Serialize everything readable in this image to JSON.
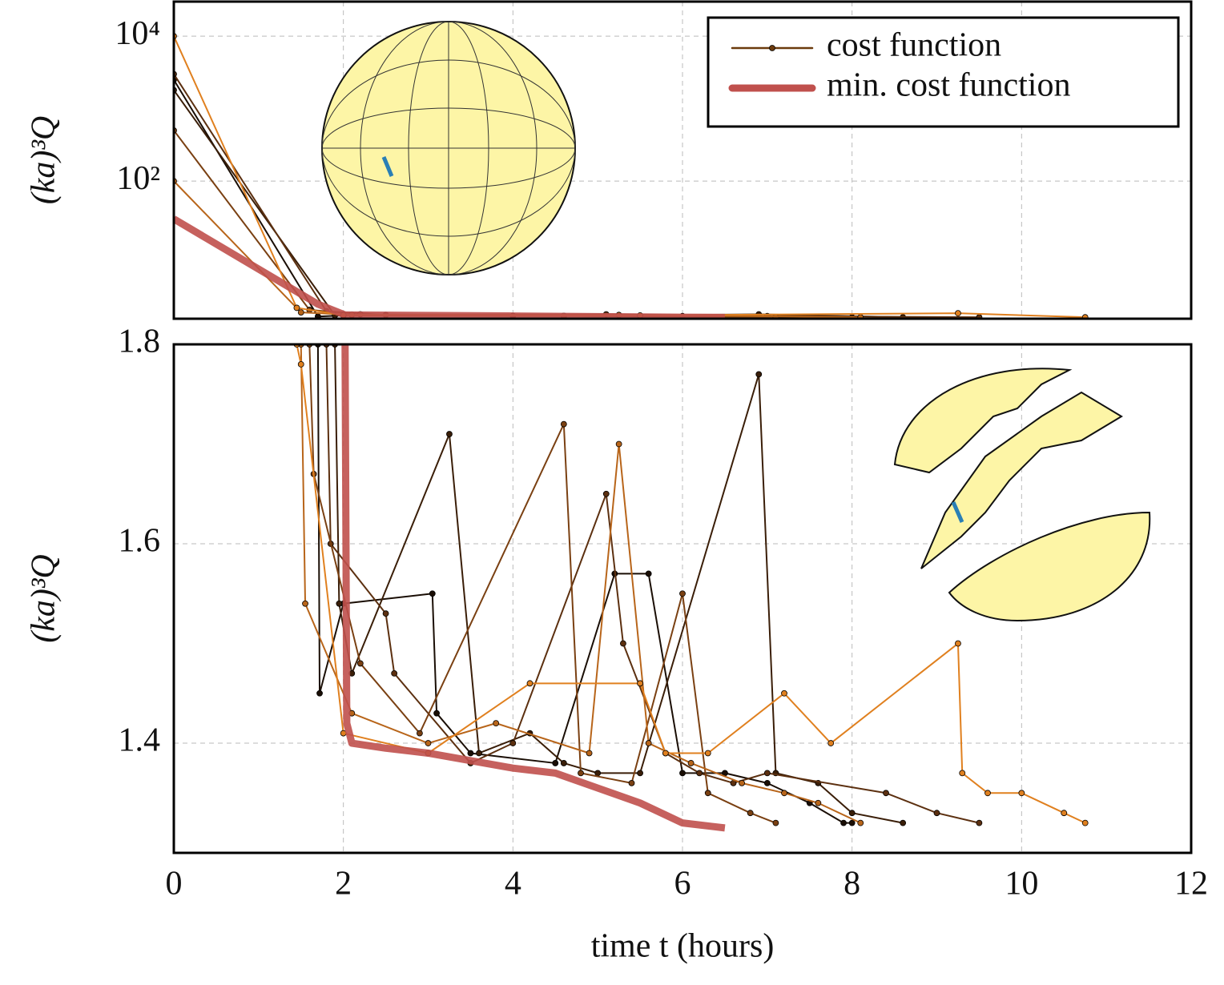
{
  "chart_data": [
    {
      "type": "line",
      "ylabel": "(ka)³Q",
      "yscale": "log",
      "xlim": [
        0,
        12
      ],
      "xticks": [
        0,
        2,
        4,
        6,
        8,
        10,
        12
      ],
      "xtick_labels": false,
      "ylim": [
        1.26,
        30000
      ],
      "yticks": [
        {
          "value": 100,
          "label": "10²"
        },
        {
          "value": 10000,
          "label": "10⁴"
        }
      ],
      "grid": true,
      "legend": {
        "position": "upper right",
        "entries": [
          {
            "label": "cost function",
            "color": "#6b3a0c",
            "style": "markers"
          },
          {
            "label": "min. cost function",
            "color": "#c0504d",
            "style": "thick"
          }
        ]
      },
      "series": [
        {
          "color": "#1a0e05",
          "style": "markers",
          "x": [
            0,
            1.7,
            2,
            4,
            6,
            8
          ],
          "values": [
            2500,
            1.35,
            1.4,
            1.38,
            1.37,
            1.32
          ]
        },
        {
          "color": "#3a1e08",
          "style": "markers",
          "x": [
            0,
            1.9,
            2.1,
            4.6,
            6.9,
            8.6
          ],
          "values": [
            1800,
            1.4,
            1.42,
            1.38,
            1.45,
            1.32
          ]
        },
        {
          "color": "#5c3010",
          "style": "markers",
          "x": [
            0,
            1.8,
            2.5,
            5.1,
            7.0,
            9.5
          ],
          "values": [
            3000,
            1.6,
            1.42,
            1.45,
            1.37,
            1.32
          ]
        },
        {
          "color": "#7a4012",
          "style": "markers",
          "x": [
            0,
            1.6,
            2.2,
            4.6,
            7.1
          ],
          "values": [
            500,
            1.67,
            1.45,
            1.38,
            1.32
          ]
        },
        {
          "color": "#b8651a",
          "style": "markers",
          "x": [
            0,
            1.5,
            2.1,
            5.25,
            8.1
          ],
          "values": [
            100,
            1.54,
            1.43,
            1.42,
            1.32
          ]
        },
        {
          "color": "#e0801f",
          "style": "markers",
          "x": [
            0,
            1.45,
            2.0,
            5.5,
            9.25,
            10.75
          ],
          "values": [
            10000,
            1.78,
            1.41,
            1.4,
            1.5,
            1.32
          ]
        },
        {
          "color": "#c0504d",
          "style": "thick",
          "x": [
            0,
            1.7,
            2.02,
            4.0,
            6.0,
            6.5
          ],
          "values": [
            30,
            2,
            1.42,
            1.375,
            1.32,
            1.315
          ]
        }
      ]
    },
    {
      "type": "line",
      "ylabel": "(ka)³Q",
      "xlabel": "time t (hours)",
      "xlim": [
        0,
        12
      ],
      "xticks": [
        0,
        2,
        4,
        6,
        8,
        10,
        12
      ],
      "xtick_labels": true,
      "ylim": [
        1.29,
        1.8
      ],
      "yticks": [
        1.4,
        1.6,
        1.8
      ],
      "grid": true,
      "series": [
        {
          "color": "#1a0e05",
          "style": "markers",
          "x": [
            1.7,
            1.72,
            2.0,
            3.05,
            3.1,
            3.5,
            4.5,
            5.2,
            5.6,
            6.0,
            6.5,
            7.0,
            7.5,
            7.9,
            8.0
          ],
          "values": [
            1.8,
            1.45,
            1.54,
            1.55,
            1.43,
            1.39,
            1.38,
            1.57,
            1.57,
            1.37,
            1.37,
            1.36,
            1.34,
            1.32,
            1.32
          ]
        },
        {
          "color": "#3a1e08",
          "style": "markers",
          "x": [
            1.9,
            1.95,
            2.1,
            3.25,
            3.6,
            4.2,
            4.6,
            5.0,
            5.5,
            6.9,
            7.1,
            7.6,
            8.0,
            8.6
          ],
          "values": [
            1.8,
            1.54,
            1.47,
            1.71,
            1.39,
            1.41,
            1.38,
            1.37,
            1.37,
            1.77,
            1.37,
            1.36,
            1.33,
            1.32
          ]
        },
        {
          "color": "#5c3010",
          "style": "markers",
          "x": [
            1.8,
            1.85,
            2.5,
            2.6,
            3.5,
            4.0,
            5.1,
            5.3,
            5.8,
            6.2,
            6.6,
            7.0,
            8.4,
            9.0,
            9.5
          ],
          "values": [
            1.8,
            1.6,
            1.53,
            1.47,
            1.38,
            1.4,
            1.65,
            1.5,
            1.39,
            1.37,
            1.36,
            1.37,
            1.35,
            1.33,
            1.32
          ]
        },
        {
          "color": "#7a4012",
          "style": "markers",
          "x": [
            1.6,
            1.65,
            2.2,
            2.9,
            4.6,
            4.8,
            5.4,
            6.0,
            6.3,
            6.8,
            7.1
          ],
          "values": [
            1.8,
            1.67,
            1.48,
            1.41,
            1.72,
            1.37,
            1.36,
            1.55,
            1.35,
            1.33,
            1.32
          ]
        },
        {
          "color": "#b8651a",
          "style": "markers",
          "x": [
            1.5,
            1.55,
            2.1,
            3.0,
            3.8,
            4.9,
            5.25,
            5.6,
            6.1,
            6.7,
            7.2,
            7.6,
            8.1
          ],
          "values": [
            1.8,
            1.54,
            1.43,
            1.4,
            1.42,
            1.39,
            1.7,
            1.4,
            1.38,
            1.36,
            1.35,
            1.34,
            1.32
          ]
        },
        {
          "color": "#e0801f",
          "style": "markers",
          "x": [
            1.45,
            1.5,
            2.0,
            3.0,
            4.2,
            5.5,
            5.8,
            6.3,
            7.2,
            7.75,
            9.25,
            9.3,
            9.6,
            10.0,
            10.5,
            10.75
          ],
          "values": [
            1.8,
            1.78,
            1.41,
            1.39,
            1.46,
            1.46,
            1.39,
            1.39,
            1.45,
            1.4,
            1.5,
            1.37,
            1.35,
            1.35,
            1.33,
            1.32
          ]
        },
        {
          "color": "#c0504d",
          "style": "thick",
          "x": [
            2.02,
            2.04,
            2.1,
            2.5,
            3.0,
            4.0,
            4.5,
            5.0,
            5.5,
            6.0,
            6.5
          ],
          "values": [
            1.8,
            1.42,
            1.4,
            1.395,
            1.39,
            1.375,
            1.37,
            1.355,
            1.34,
            1.32,
            1.315
          ]
        }
      ]
    }
  ]
}
